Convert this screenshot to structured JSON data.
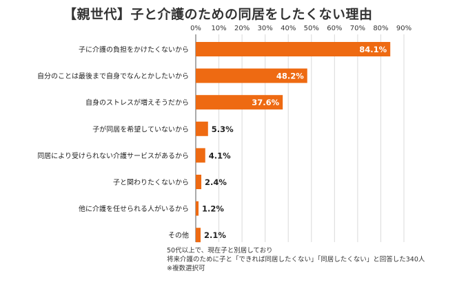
{
  "title": "【親世代】子と介護のための同居をしたくない理由",
  "colors": {
    "bar": "#ee6a12",
    "grid": "#d9d9d9",
    "axis": "#555555"
  },
  "chart_data": {
    "type": "bar",
    "orientation": "horizontal",
    "title": "【親世代】子と介護のための同居をしたくない理由",
    "xlabel": "",
    "ylabel": "",
    "xlim": [
      0,
      90
    ],
    "ticks": [
      "0%",
      "10%",
      "20%",
      "30%",
      "40%",
      "50%",
      "60%",
      "70%",
      "80%",
      "90%"
    ],
    "tick_values": [
      0,
      10,
      20,
      30,
      40,
      50,
      60,
      70,
      80,
      90
    ],
    "grid": true,
    "categories": [
      "子に介護の負担をかけたくないから",
      "自分のことは最後まで自身でなんとかしたいから",
      "自身のストレスが増えそうだから",
      "子が同居を希望していないから",
      "同居により受けられない介護サービスがあるから",
      "子と関わりたくないから",
      "他に介護を任せられる人がいるから",
      "その他"
    ],
    "values": [
      84.1,
      48.2,
      37.6,
      5.3,
      4.1,
      2.4,
      1.2,
      2.1
    ],
    "labels": [
      "84.1%",
      "48.2%",
      "37.6%",
      "5.3%",
      "4.1%",
      "2.4%",
      "1.2%",
      "2.1%"
    ]
  },
  "footnote": {
    "lines": [
      "50代以上で、現在子と別居しており",
      "将来介護のために子と「できれば同居したくない」「同居したくない」と回答した340人",
      "※複数選択可"
    ]
  }
}
